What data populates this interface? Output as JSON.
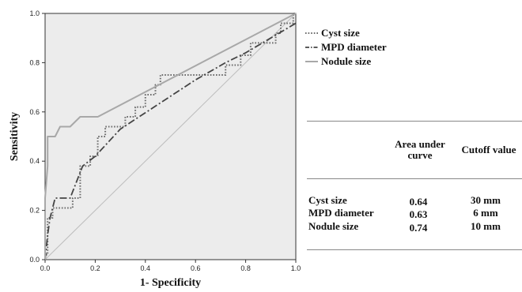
{
  "chart_data": {
    "type": "line",
    "xlabel": "1- Specificity",
    "ylabel": "Sensitivity",
    "xlim": [
      0,
      1
    ],
    "ylim": [
      0,
      1
    ],
    "xticks": [
      "0.0",
      "0.2",
      "0.4",
      "0.6",
      "0.8",
      "1.0"
    ],
    "yticks": [
      "0.0",
      "0.2",
      "0.4",
      "0.6",
      "0.8",
      "1.0"
    ],
    "grid": false,
    "background": "#ececec",
    "legend_position": "right",
    "series": [
      {
        "name": "Cyst size",
        "style": "dotted",
        "color": "#6b6b6b",
        "x": [
          0.0,
          0.0,
          0.01,
          0.01,
          0.03,
          0.03,
          0.11,
          0.11,
          0.14,
          0.14,
          0.18,
          0.18,
          0.21,
          0.21,
          0.24,
          0.24,
          0.32,
          0.32,
          0.36,
          0.36,
          0.4,
          0.4,
          0.44,
          0.44,
          0.46,
          0.46,
          0.72,
          0.72,
          0.78,
          0.78,
          0.82,
          0.82,
          0.92,
          0.92,
          0.94,
          0.94,
          0.99,
          0.99,
          1.0
        ],
        "y": [
          0.0,
          0.02,
          0.02,
          0.17,
          0.17,
          0.21,
          0.21,
          0.25,
          0.25,
          0.38,
          0.38,
          0.42,
          0.42,
          0.5,
          0.5,
          0.54,
          0.54,
          0.58,
          0.58,
          0.62,
          0.62,
          0.67,
          0.67,
          0.71,
          0.71,
          0.75,
          0.75,
          0.79,
          0.79,
          0.83,
          0.83,
          0.88,
          0.88,
          0.92,
          0.92,
          0.96,
          0.96,
          1.0,
          1.0
        ]
      },
      {
        "name": "MPD diameter",
        "style": "dashdot",
        "color": "#444444",
        "x": [
          0.0,
          0.01,
          0.02,
          0.04,
          0.1,
          0.15,
          0.2,
          0.3,
          0.45,
          0.6,
          0.72,
          0.8,
          0.9,
          1.0
        ],
        "y": [
          0.0,
          0.1,
          0.17,
          0.25,
          0.25,
          0.38,
          0.42,
          0.53,
          0.63,
          0.73,
          0.8,
          0.84,
          0.9,
          0.96
        ]
      },
      {
        "name": "Nodule size",
        "style": "solid",
        "color": "#a8a8a8",
        "x": [
          0.0,
          0.0,
          0.01,
          0.01,
          0.02,
          0.02,
          0.04,
          0.06,
          0.1,
          0.14,
          0.21,
          1.0
        ],
        "y": [
          0.0,
          0.25,
          0.38,
          0.5,
          0.5,
          0.5,
          0.5,
          0.54,
          0.54,
          0.58,
          0.58,
          1.0
        ]
      }
    ],
    "table": {
      "headers": [
        "Area under curve",
        "Cutoff value"
      ],
      "rows": [
        {
          "label": "Cyst size",
          "auc": "0.64",
          "cutoff": "30 mm"
        },
        {
          "label": "MPD diameter",
          "auc": "0.63",
          "cutoff": "6 mm"
        },
        {
          "label": "Nodule size",
          "auc": "0.74",
          "cutoff": "10 mm"
        }
      ]
    }
  }
}
